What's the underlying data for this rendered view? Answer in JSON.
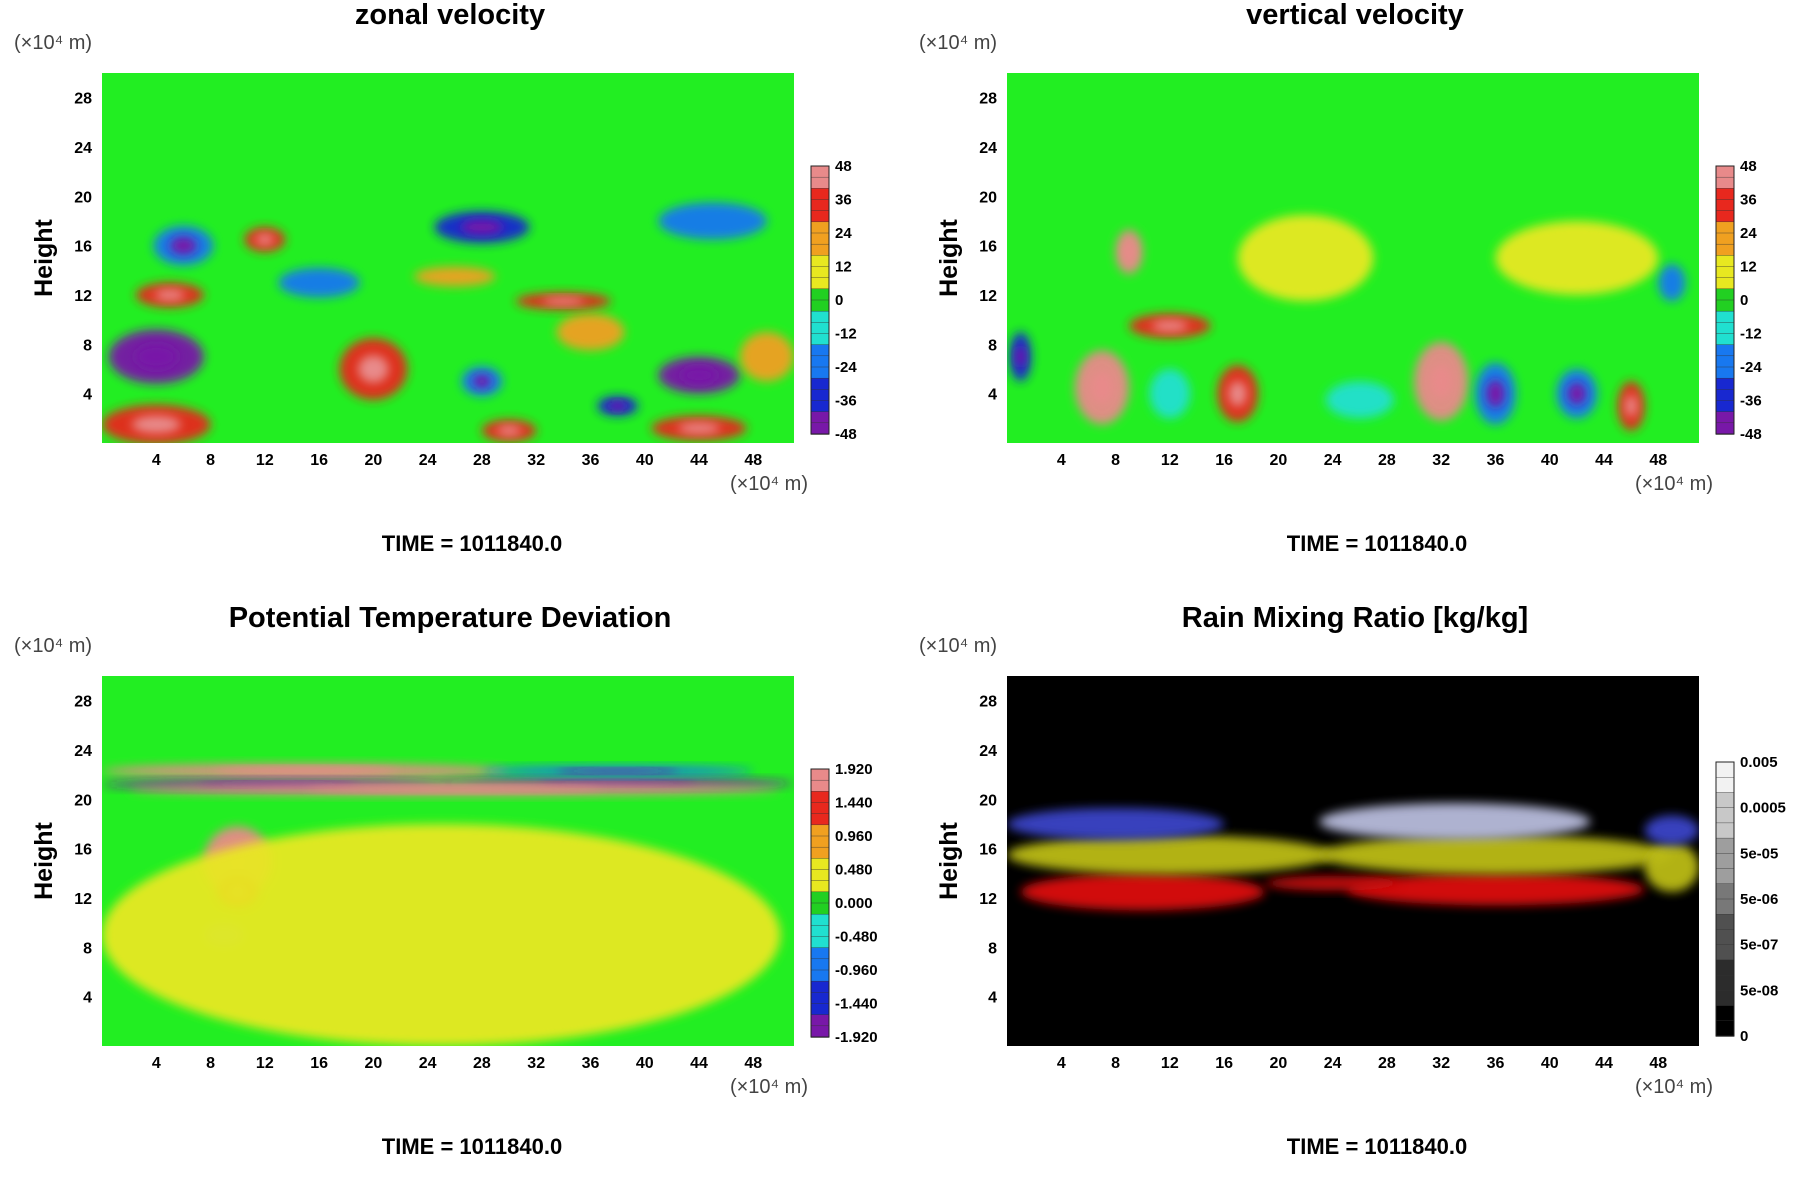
{
  "chart_data": [
    {
      "type": "heatmap",
      "title": "zonal velocity",
      "ylabel": "Height",
      "x_unit": "(×10⁴ m)",
      "y_unit": "(×10⁴ m)",
      "x_ticks": [
        4,
        8,
        12,
        16,
        20,
        24,
        28,
        32,
        36,
        40,
        44,
        48
      ],
      "y_ticks": [
        4,
        8,
        12,
        16,
        20,
        24,
        28
      ],
      "xlim": [
        0,
        51
      ],
      "ylim": [
        0,
        30
      ],
      "colorbar": {
        "labels": [
          "48",
          "36",
          "24",
          "12",
          "0",
          "-12",
          "-24",
          "-36",
          "-48"
        ],
        "values": [
          48,
          36,
          24,
          12,
          0,
          -12,
          -24,
          -36,
          -48
        ],
        "palette": "rainbow",
        "colors": [
          "#e88a8a",
          "#e8281e",
          "#f0a020",
          "#e8e820",
          "#22d022",
          "#20e0d0",
          "#1878f0",
          "#1828d0",
          "#7818a8"
        ]
      },
      "background": "#22ee22",
      "time_label": "TIME = 1011840.0",
      "features": [
        {
          "x": 4,
          "y": 7,
          "rx": 3.5,
          "ry": 2.2,
          "level": -48
        },
        {
          "x": 4,
          "y": 1.5,
          "rx": 4,
          "ry": 1.6,
          "level": 40
        },
        {
          "x": 12,
          "y": 16.5,
          "rx": 1.5,
          "ry": 1,
          "level": 40
        },
        {
          "x": 5,
          "y": 12,
          "rx": 2.5,
          "ry": 1,
          "level": 36
        },
        {
          "x": 20,
          "y": 6,
          "rx": 2.5,
          "ry": 2.5,
          "level": 30
        },
        {
          "x": 28,
          "y": 17.5,
          "rx": 3.5,
          "ry": 1.3,
          "level": -42
        },
        {
          "x": 44,
          "y": 5.5,
          "rx": 3,
          "ry": 1.5,
          "level": -48
        },
        {
          "x": 28,
          "y": 5,
          "rx": 1.5,
          "ry": 1.2,
          "level": -30
        },
        {
          "x": 44,
          "y": 1.2,
          "rx": 3.5,
          "ry": 1,
          "level": 40
        },
        {
          "x": 36,
          "y": 9,
          "rx": 2.5,
          "ry": 1.5,
          "level": 24
        },
        {
          "x": 6,
          "y": 16,
          "rx": 2.2,
          "ry": 1.6,
          "level": -30
        },
        {
          "x": 45,
          "y": 18,
          "rx": 4,
          "ry": 1.5,
          "level": -20
        },
        {
          "x": 34,
          "y": 11.5,
          "rx": 3.5,
          "ry": 0.7,
          "level": 30
        },
        {
          "x": 26,
          "y": 13.5,
          "rx": 3,
          "ry": 0.8,
          "level": 22
        },
        {
          "x": 38,
          "y": 3,
          "rx": 1.5,
          "ry": 0.8,
          "level": -38
        },
        {
          "x": 16,
          "y": 13,
          "rx": 3,
          "ry": 1.2,
          "level": -24
        },
        {
          "x": 49,
          "y": 7,
          "rx": 2,
          "ry": 2,
          "level": 26
        },
        {
          "x": 30,
          "y": 1,
          "rx": 2,
          "ry": 0.9,
          "level": 36
        }
      ]
    },
    {
      "type": "heatmap",
      "title": "vertical velocity",
      "ylabel": "Height",
      "x_unit": "(×10⁴ m)",
      "y_unit": "(×10⁴ m)",
      "x_ticks": [
        4,
        8,
        12,
        16,
        20,
        24,
        28,
        32,
        36,
        40,
        44,
        48
      ],
      "y_ticks": [
        4,
        8,
        12,
        16,
        20,
        24,
        28
      ],
      "xlim": [
        0,
        51
      ],
      "ylim": [
        0,
        30
      ],
      "colorbar": {
        "labels": [
          "48",
          "36",
          "24",
          "12",
          "0",
          "-12",
          "-24",
          "-36",
          "-48"
        ],
        "values": [
          48,
          36,
          24,
          12,
          0,
          -12,
          -24,
          -36,
          -48
        ],
        "palette": "rainbow",
        "colors": [
          "#e88a8a",
          "#e8281e",
          "#f0a020",
          "#e8e820",
          "#22d022",
          "#20e0d0",
          "#1878f0",
          "#1828d0",
          "#7818a8"
        ]
      },
      "background": "#22ee22",
      "time_label": "TIME = 1011840.0",
      "features": [
        {
          "x": 7,
          "y": 4.5,
          "rx": 2,
          "ry": 3,
          "level": 45
        },
        {
          "x": 17,
          "y": 4,
          "rx": 1.5,
          "ry": 2.3,
          "level": 36
        },
        {
          "x": 32,
          "y": 5,
          "rx": 2,
          "ry": 3.2,
          "level": 45
        },
        {
          "x": 46,
          "y": 3,
          "rx": 1,
          "ry": 2,
          "level": 38
        },
        {
          "x": 9,
          "y": 15.5,
          "rx": 1,
          "ry": 1.8,
          "level": 44
        },
        {
          "x": 1,
          "y": 7,
          "rx": 0.8,
          "ry": 2,
          "level": -42
        },
        {
          "x": 12,
          "y": 9.5,
          "rx": 3,
          "ry": 1,
          "level": 30
        },
        {
          "x": 36,
          "y": 4,
          "rx": 1.5,
          "ry": 2.5,
          "level": -30
        },
        {
          "x": 42,
          "y": 4,
          "rx": 1.5,
          "ry": 2,
          "level": -30
        },
        {
          "x": 26,
          "y": 3.5,
          "rx": 2.5,
          "ry": 1.5,
          "level": -12
        },
        {
          "x": 12,
          "y": 4,
          "rx": 1.5,
          "ry": 2,
          "level": -14
        },
        {
          "x": 49,
          "y": 13,
          "rx": 1,
          "ry": 1.5,
          "level": -26
        },
        {
          "x": 22,
          "y": 15,
          "rx": 5,
          "ry": 3.5,
          "level": 10
        },
        {
          "x": 42,
          "y": 15,
          "rx": 6,
          "ry": 3,
          "level": 10
        }
      ]
    },
    {
      "type": "heatmap",
      "title": "Potential Temperature Deviation",
      "ylabel": "Height",
      "x_unit": "(×10⁴ m)",
      "y_unit": "(×10⁴ m)",
      "x_ticks": [
        4,
        8,
        12,
        16,
        20,
        24,
        28,
        32,
        36,
        40,
        44,
        48
      ],
      "y_ticks": [
        4,
        8,
        12,
        16,
        20,
        24,
        28
      ],
      "xlim": [
        0,
        51
      ],
      "ylim": [
        0,
        30
      ],
      "colorbar": {
        "labels": [
          "1.920",
          "1.440",
          "0.960",
          "0.480",
          "0.000",
          "-0.480",
          "-0.960",
          "-1.440",
          "-1.920"
        ],
        "values": [
          1.92,
          1.44,
          0.96,
          0.48,
          0.0,
          -0.48,
          -0.96,
          -1.44,
          -1.92
        ],
        "palette": "rainbow",
        "colors": [
          "#e88a8a",
          "#e8281e",
          "#f0a020",
          "#e8e820",
          "#22d022",
          "#20e0d0",
          "#1878f0",
          "#1828d0",
          "#7818a8"
        ]
      },
      "background": "#22ee22",
      "time_label": "TIME = 1011840.0",
      "features": [
        {
          "x": 15,
          "y": 22.3,
          "rx": 15,
          "ry": 0.6,
          "level": 1.9
        },
        {
          "x": 13,
          "y": 21.2,
          "rx": 13,
          "ry": 0.4,
          "level": -1.9
        },
        {
          "x": 38,
          "y": 21.3,
          "rx": 13,
          "ry": 0.4,
          "level": -1.9
        },
        {
          "x": 26,
          "y": 20.8,
          "rx": 24,
          "ry": 0.5,
          "level": 1.8
        },
        {
          "x": 38,
          "y": 22.3,
          "rx": 10,
          "ry": 0.4,
          "level": -1.2
        },
        {
          "x": 10,
          "y": 15,
          "rx": 2.5,
          "ry": 2.8,
          "level": 1.7
        },
        {
          "x": 10,
          "y": 12.5,
          "rx": 1.5,
          "ry": 1.2,
          "level": 1.3
        },
        {
          "x": 9,
          "y": 9,
          "rx": 1.5,
          "ry": 1,
          "level": -0.6
        },
        {
          "x": 25,
          "y": 9,
          "rx": 25,
          "ry": 9,
          "level": 0.25
        }
      ]
    },
    {
      "type": "heatmap",
      "title": "Rain Mixing Ratio [kg/kg]",
      "ylabel": "Height",
      "x_unit": "(×10⁴ m)",
      "y_unit": "(×10⁴ m)",
      "x_ticks": [
        4,
        8,
        12,
        16,
        20,
        24,
        28,
        32,
        36,
        40,
        44,
        48
      ],
      "y_ticks": [
        4,
        8,
        12,
        16,
        20,
        24,
        28
      ],
      "xlim": [
        0,
        51
      ],
      "ylim": [
        0,
        30
      ],
      "colorbar": {
        "labels": [
          "0.005",
          "0.0005",
          "5e-05",
          "5e-06",
          "5e-07",
          "5e-08",
          "0"
        ],
        "palette": "grayscale",
        "colors": [
          "#f2f2f2",
          "#c8c8c8",
          "#9e9e9e",
          "#787878",
          "#505050",
          "#2c2c2c",
          "#000000"
        ]
      },
      "background": "#000000",
      "time_label": "TIME = 1011840.0",
      "features": [
        {
          "x": 10,
          "y": 12.5,
          "rx": 9,
          "ry": 1.5,
          "color": "#dd1010"
        },
        {
          "x": 36,
          "y": 12.7,
          "rx": 11,
          "ry": 1.3,
          "color": "#dd1010"
        },
        {
          "x": 24,
          "y": 13.2,
          "rx": 5,
          "ry": 0.6,
          "color": "#c80e0e"
        },
        {
          "x": 12,
          "y": 15.5,
          "rx": 12,
          "ry": 1.6,
          "color": "#bcbc12"
        },
        {
          "x": 36,
          "y": 15.5,
          "rx": 13,
          "ry": 1.6,
          "color": "#bcbc12"
        },
        {
          "x": 49,
          "y": 14.5,
          "rx": 2,
          "ry": 2,
          "color": "#bcbc12"
        },
        {
          "x": 8,
          "y": 18,
          "rx": 8,
          "ry": 1.3,
          "color": "#3a44c8"
        },
        {
          "x": 33,
          "y": 18.2,
          "rx": 10,
          "ry": 1.5,
          "color": "#b8bcdc"
        },
        {
          "x": 49,
          "y": 17.5,
          "rx": 2,
          "ry": 1.2,
          "color": "#3a44c8"
        }
      ]
    }
  ]
}
